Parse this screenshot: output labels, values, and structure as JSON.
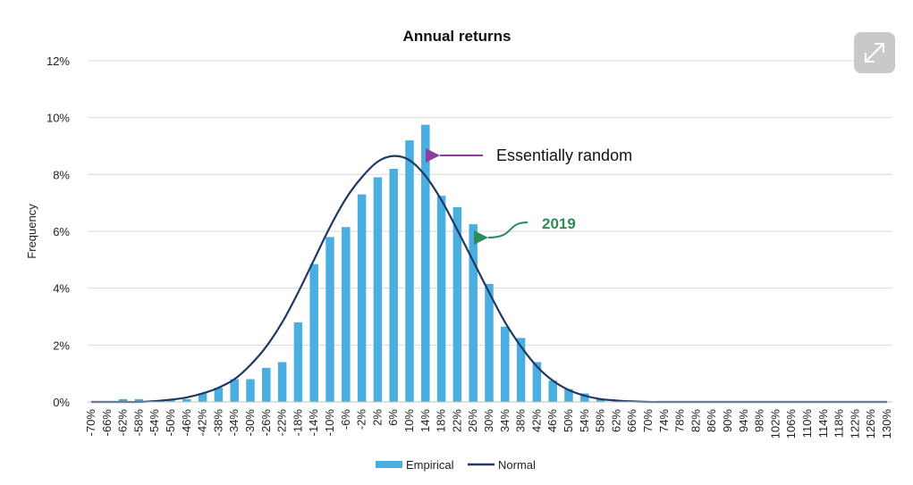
{
  "chart_data": {
    "type": "bar",
    "title": "Annual returns",
    "ylabel": "Frequency",
    "xlabel": "",
    "ylim": [
      0,
      12
    ],
    "yticks": [
      "0%",
      "2%",
      "4%",
      "6%",
      "8%",
      "10%",
      "12%"
    ],
    "categories": [
      "-70%",
      "-66%",
      "-62%",
      "-58%",
      "-54%",
      "-50%",
      "-46%",
      "-42%",
      "-38%",
      "-34%",
      "-30%",
      "-26%",
      "-22%",
      "-18%",
      "-14%",
      "-10%",
      "-6%",
      "-2%",
      "2%",
      "6%",
      "10%",
      "14%",
      "18%",
      "22%",
      "26%",
      "30%",
      "34%",
      "38%",
      "42%",
      "46%",
      "50%",
      "54%",
      "58%",
      "62%",
      "66%",
      "70%",
      "74%",
      "78%",
      "82%",
      "86%",
      "90%",
      "94%",
      "98%",
      "102%",
      "106%",
      "110%",
      "114%",
      "118%",
      "122%",
      "126%",
      "130%"
    ],
    "series": [
      {
        "name": "Empirical",
        "type": "bar",
        "color": "#4aafe0",
        "values": [
          0,
          0,
          0.1,
          0.1,
          0.05,
          0.1,
          0.1,
          0.3,
          0.5,
          0.8,
          0.8,
          1.2,
          1.4,
          2.8,
          4.85,
          5.8,
          6.15,
          7.3,
          7.9,
          8.2,
          9.2,
          9.75,
          7.25,
          6.85,
          6.25,
          4.15,
          2.65,
          2.25,
          1.4,
          0.75,
          0.45,
          0.3,
          0.1,
          0.05,
          0.02,
          0,
          0,
          0,
          0,
          0,
          0,
          0,
          0,
          0,
          0,
          0,
          0,
          0,
          0,
          0,
          0
        ]
      },
      {
        "name": "Normal",
        "type": "line",
        "color": "#1f3864",
        "values": [
          0,
          0,
          0,
          0,
          0.03,
          0.08,
          0.16,
          0.3,
          0.5,
          0.8,
          1.3,
          1.95,
          2.8,
          3.85,
          5.0,
          6.15,
          7.15,
          7.9,
          8.45,
          8.65,
          8.5,
          7.95,
          7.1,
          6.05,
          4.95,
          3.85,
          2.8,
          1.95,
          1.25,
          0.75,
          0.42,
          0.22,
          0.1,
          0.05,
          0.02,
          0,
          0,
          0,
          0,
          0,
          0,
          0,
          0,
          0,
          0,
          0,
          0,
          0,
          0,
          0,
          0
        ]
      }
    ],
    "legend": {
      "position": "bottom",
      "items": [
        "Empirical",
        "Normal"
      ]
    },
    "annotations": [
      {
        "text": "Essentially random",
        "points_to": "14%",
        "color": "#8b3fa0"
      },
      {
        "text": "2019",
        "points_to": "26%",
        "color": "#2e8b57"
      }
    ]
  }
}
